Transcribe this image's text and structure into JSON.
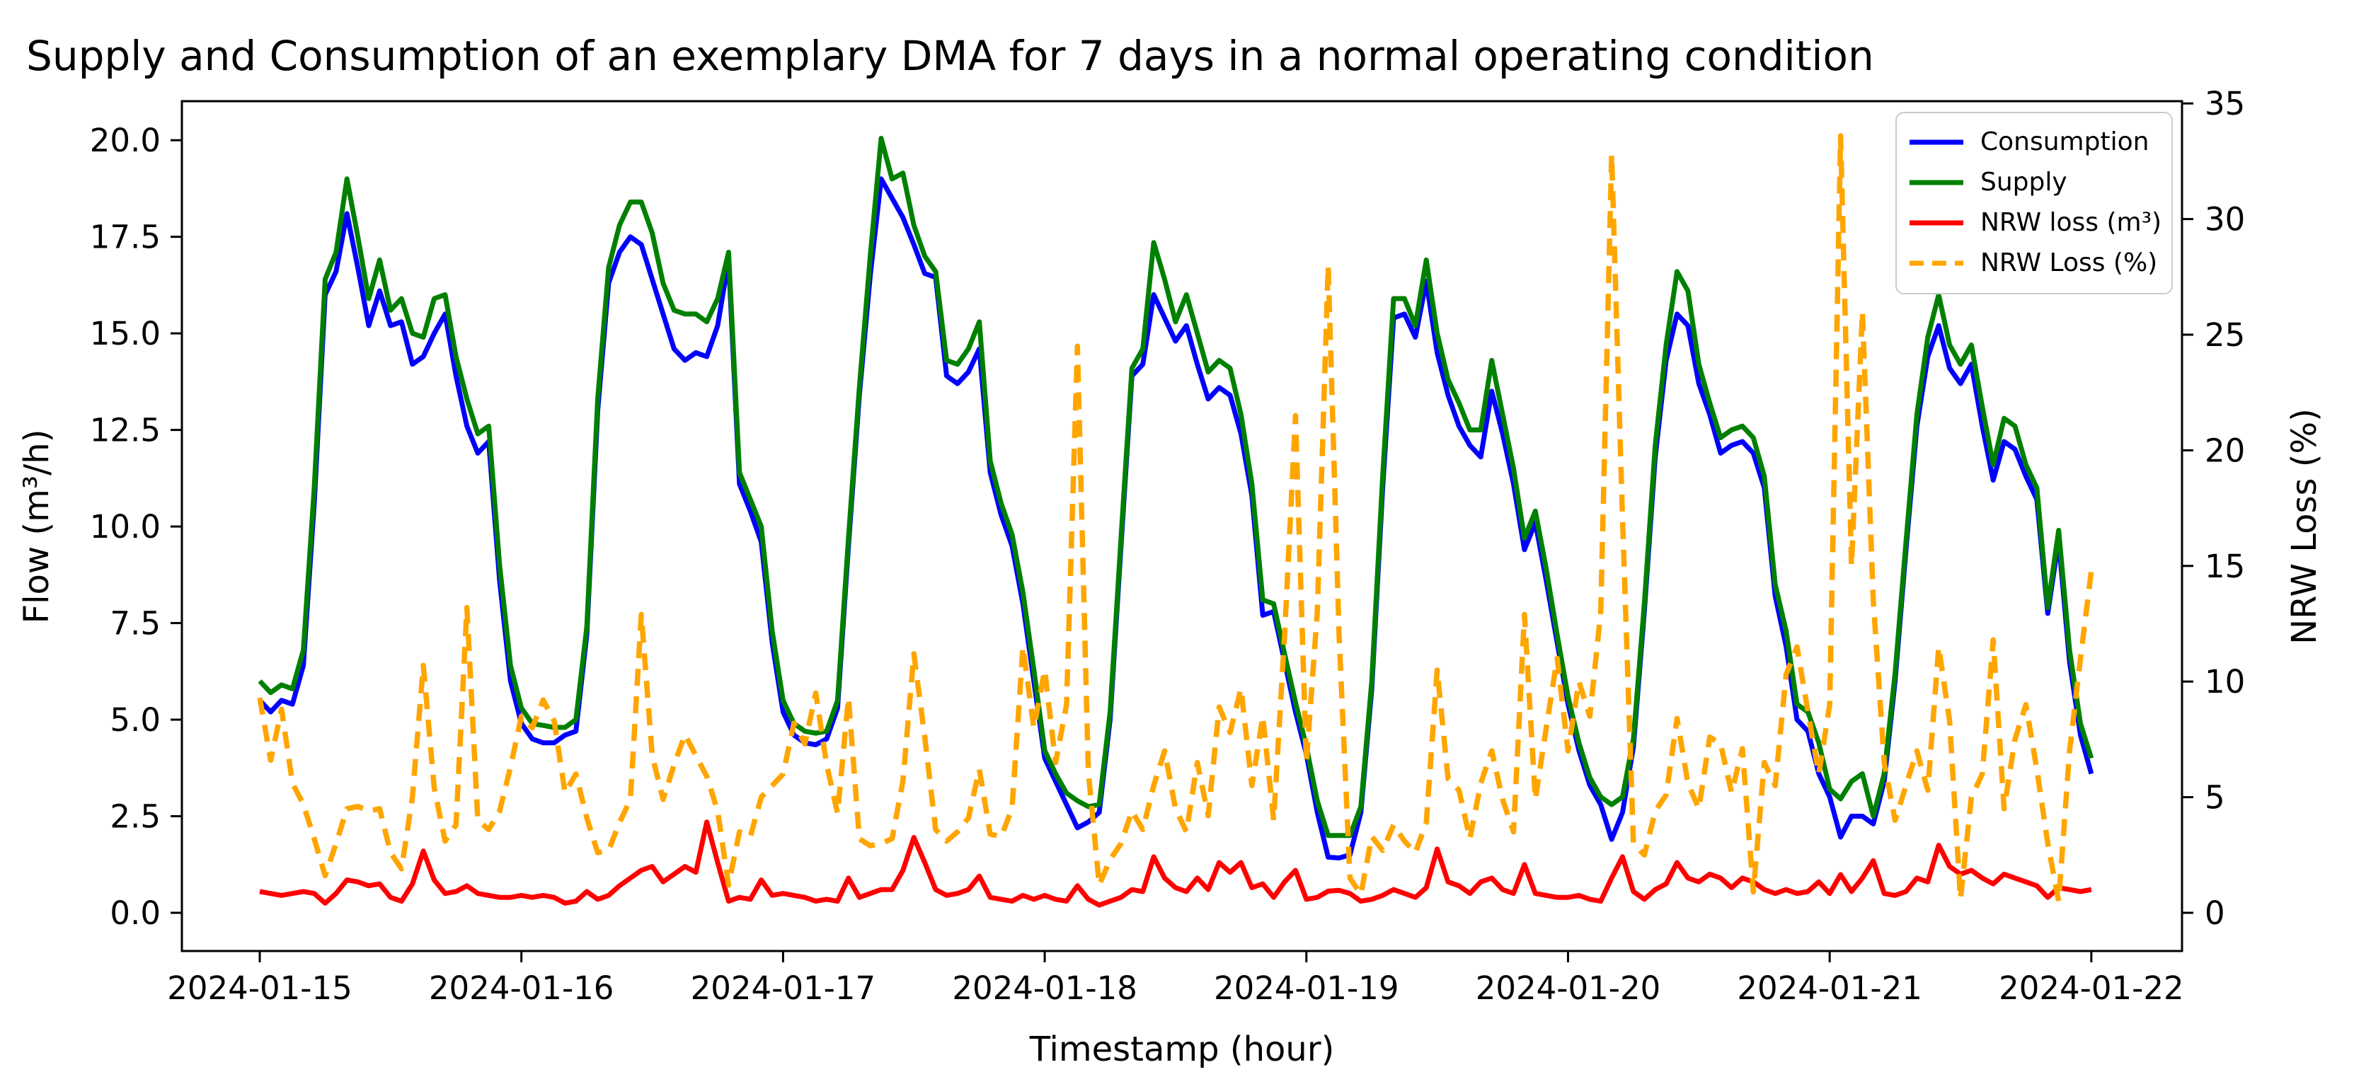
{
  "chart_data": {
    "type": "line",
    "title": "Supply and Consumption of an exemplary DMA for 7 days in a normal operating condition",
    "xlabel": "Timestamp (hour)",
    "ylabel_left": "Flow (m³/h)",
    "ylabel_right": "NRW Loss (%)",
    "x_start": "2024-01-15 00:00",
    "x_end": "2024-01-22 00:00",
    "x_step_hours": 1,
    "n_points": 169,
    "grid": false,
    "legend_position": "upper right",
    "x_tick_labels": [
      "2024-01-15",
      "2024-01-16",
      "2024-01-17",
      "2024-01-18",
      "2024-01-19",
      "2024-01-20",
      "2024-01-21",
      "2024-01-22"
    ],
    "y_ticks_left": {
      "values": [
        0,
        2.5,
        5,
        7.5,
        10,
        12.5,
        15,
        17.5,
        20
      ],
      "labels": [
        "0.0",
        "2.5",
        "5.0",
        "7.5",
        "10.0",
        "12.5",
        "15.0",
        "17.5",
        "20.0"
      ]
    },
    "y_ticks_right": {
      "values": [
        0,
        5,
        10,
        15,
        20,
        25,
        30,
        35
      ],
      "labels": [
        "0",
        "5",
        "10",
        "15",
        "20",
        "25",
        "30",
        "35"
      ]
    },
    "ylim_left": [
      -1.0,
      21.0
    ],
    "ylim_right": [
      -1.65,
      35.1
    ],
    "series": [
      {
        "name": "Consumption",
        "color": "#0000ff",
        "style": "solid",
        "axis": "left",
        "values": [
          5.5,
          5.2,
          5.5,
          5.4,
          6.4,
          10.6,
          16,
          16.6,
          18.1,
          16.7,
          15.2,
          16.1,
          15.2,
          15.3,
          14.2,
          14.4,
          15,
          15.5,
          13.9,
          12.6,
          11.9,
          12.2,
          8.6,
          6,
          4.9,
          4.5,
          4.4,
          4.4,
          4.6,
          4.7,
          7.2,
          13,
          16.3,
          17.1,
          17.5,
          17.3,
          16.4,
          15.5,
          14.6,
          14.3,
          14.5,
          14.4,
          15.2,
          16.9,
          11.1,
          10.4,
          9.6,
          7,
          5.2,
          4.6,
          4.4,
          4.35,
          4.5,
          5.3,
          9.5,
          13.4,
          16.5,
          19,
          18.5,
          18,
          17.3,
          16.55,
          16.45,
          13.9,
          13.7,
          14,
          14.6,
          11.4,
          10.3,
          9.5,
          8,
          6,
          4,
          3.4,
          2.8,
          2.2,
          2.35,
          2.6,
          5,
          9.5,
          13.9,
          14.2,
          16,
          15.4,
          14.8,
          15.2,
          14.2,
          13.3,
          13.6,
          13.4,
          12.4,
          10.8,
          7.7,
          7.8,
          6.5,
          5.2,
          4.1,
          2.6,
          1.44,
          1.42,
          1.5,
          2.6,
          5.8,
          11,
          15.4,
          15.5,
          14.9,
          16.35,
          14.5,
          13.4,
          12.6,
          12.1,
          11.8,
          13.5,
          12.4,
          11.1,
          9.4,
          10.1,
          8.6,
          7,
          5.4,
          4.2,
          3.3,
          2.8,
          1.9,
          2.6,
          4.3,
          7.8,
          11.8,
          14.3,
          15.5,
          15.2,
          13.7,
          12.9,
          11.9,
          12.1,
          12.2,
          11.9,
          11,
          8.2,
          6.9,
          5,
          4.7,
          3.6,
          3,
          1.96,
          2.5,
          2.5,
          2.3,
          3.4,
          6,
          9.4,
          12.6,
          14.4,
          15.2,
          14.1,
          13.7,
          14.2,
          12.6,
          11.2,
          12.2,
          12,
          11.3,
          10.7,
          7.75,
          9.65,
          6.5,
          4.6,
          3.6
        ]
      },
      {
        "name": "Supply",
        "color": "#008000",
        "style": "solid",
        "axis": "left",
        "values": [
          6,
          5.7,
          5.9,
          5.8,
          6.8,
          11,
          16.4,
          17.1,
          19,
          17.5,
          15.9,
          16.9,
          15.6,
          15.9,
          15,
          14.9,
          15.9,
          16,
          14.4,
          13.3,
          12.4,
          12.6,
          9,
          6.4,
          5.3,
          4.9,
          4.85,
          4.8,
          4.8,
          5,
          7.4,
          13.3,
          16.7,
          17.8,
          18.4,
          18.4,
          17.6,
          16.3,
          15.6,
          15.5,
          15.5,
          15.3,
          15.9,
          17.1,
          11.4,
          10.7,
          10,
          7.3,
          5.5,
          4.9,
          4.7,
          4.65,
          4.7,
          5.5,
          9.7,
          13.6,
          17,
          20.05,
          19,
          19.15,
          17.8,
          17,
          16.6,
          14.3,
          14.2,
          14.6,
          15.3,
          11.7,
          10.6,
          9.8,
          8.3,
          6.3,
          4.2,
          3.6,
          3.1,
          2.9,
          2.75,
          2.8,
          5.2,
          9.7,
          14.1,
          14.6,
          17.35,
          16.4,
          15.3,
          16,
          15,
          14,
          14.3,
          14.1,
          12.9,
          11.1,
          8.1,
          8,
          6.7,
          5.45,
          4.3,
          2.9,
          2,
          2,
          2,
          2.75,
          6,
          11.3,
          15.9,
          15.9,
          15.2,
          16.9,
          15,
          13.8,
          13.2,
          12.5,
          12.5,
          14.3,
          12.9,
          11.5,
          9.7,
          10.4,
          8.9,
          7.2,
          5.6,
          4.4,
          3.5,
          3,
          2.8,
          3,
          4.5,
          8,
          12.1,
          14.7,
          16.6,
          16.1,
          14.2,
          13.2,
          12.3,
          12.5,
          12.6,
          12.3,
          11.3,
          8.5,
          7.3,
          5.4,
          5.2,
          4.4,
          3.2,
          2.95,
          3.4,
          3.6,
          2.5,
          3.6,
          6.2,
          9.6,
          12.9,
          14.9,
          16,
          14.7,
          14.2,
          14.7,
          13.1,
          11.6,
          12.8,
          12.6,
          11.6,
          11,
          7.9,
          9.9,
          6.8,
          4.9,
          4
        ]
      },
      {
        "name": "NRW loss (m³)",
        "color": "#ff0000",
        "style": "solid",
        "axis": "left",
        "values": [
          0.55,
          0.5,
          0.45,
          0.5,
          0.55,
          0.5,
          0.25,
          0.5,
          0.85,
          0.8,
          0.7,
          0.75,
          0.4,
          0.3,
          0.75,
          1.6,
          0.85,
          0.5,
          0.55,
          0.7,
          0.5,
          0.45,
          0.4,
          0.4,
          0.45,
          0.4,
          0.45,
          0.4,
          0.25,
          0.3,
          0.55,
          0.35,
          0.45,
          0.7,
          0.9,
          1.1,
          1.2,
          0.8,
          1,
          1.2,
          1.05,
          2.35,
          1.3,
          0.3,
          0.4,
          0.35,
          0.85,
          0.45,
          0.5,
          0.45,
          0.4,
          0.3,
          0.35,
          0.3,
          0.9,
          0.4,
          0.5,
          0.6,
          0.6,
          1.1,
          1.95,
          1.3,
          0.6,
          0.45,
          0.5,
          0.6,
          0.95,
          0.4,
          0.35,
          0.3,
          0.45,
          0.35,
          0.45,
          0.35,
          0.3,
          0.7,
          0.35,
          0.2,
          0.3,
          0.4,
          0.6,
          0.55,
          1.45,
          0.9,
          0.65,
          0.55,
          0.9,
          0.6,
          1.3,
          1.05,
          1.3,
          0.65,
          0.75,
          0.4,
          0.8,
          1.1,
          0.35,
          0.4,
          0.56,
          0.58,
          0.5,
          0.3,
          0.35,
          0.45,
          0.6,
          0.5,
          0.4,
          0.65,
          1.65,
          0.8,
          0.7,
          0.5,
          0.8,
          0.9,
          0.6,
          0.5,
          1.25,
          0.5,
          0.45,
          0.4,
          0.4,
          0.45,
          0.35,
          0.3,
          0.9,
          1.45,
          0.55,
          0.35,
          0.6,
          0.75,
          1.3,
          0.9,
          0.8,
          1,
          0.9,
          0.65,
          0.9,
          0.8,
          0.6,
          0.5,
          0.6,
          0.5,
          0.55,
          0.8,
          0.5,
          0.99,
          0.55,
          0.9,
          1.35,
          0.5,
          0.45,
          0.55,
          0.9,
          0.8,
          1.75,
          1.2,
          1,
          1.1,
          0.9,
          0.75,
          1,
          0.9,
          0.8,
          0.7,
          0.4,
          0.65,
          0.6,
          0.55,
          0.6
        ]
      },
      {
        "name": "NRW Loss (%)",
        "color": "#ffa500",
        "style": "dashed",
        "axis": "right",
        "values": [
          9.3,
          6.6,
          8.8,
          5.6,
          4.7,
          3.2,
          1.6,
          3,
          4.5,
          4.6,
          4.4,
          4.5,
          2.6,
          1.9,
          5,
          10.7,
          5.4,
          3.1,
          3.8,
          13.2,
          4,
          3.6,
          4.4,
          6.3,
          8.5,
          8,
          9.2,
          8.3,
          5.2,
          6,
          4.1,
          2.6,
          2.7,
          3.9,
          4.9,
          12.9,
          6.8,
          4.9,
          6.4,
          7.7,
          6.8,
          5.9,
          4.4,
          1.2,
          3.5,
          3.3,
          5,
          5.5,
          6,
          8.2,
          7.3,
          9.5,
          6.4,
          4.3,
          9.3,
          3.2,
          2.9,
          3,
          3.2,
          5.7,
          11.2,
          7.6,
          3.6,
          3.1,
          3.5,
          4.1,
          6.2,
          3.4,
          3.3,
          4.5,
          11.5,
          8,
          10.5,
          6.5,
          9,
          24.5,
          6.1,
          1.2,
          2.3,
          3,
          4.4,
          3.6,
          5.5,
          7,
          4.5,
          3.5,
          6.5,
          4.2,
          8.9,
          7.8,
          9.7,
          5.5,
          8.5,
          4,
          12,
          21.5,
          6.5,
          13,
          28,
          12,
          1.5,
          0.8,
          3.3,
          2.7,
          3.8,
          3.1,
          2.6,
          3.9,
          10.5,
          5.8,
          5.3,
          3.2,
          5.6,
          7,
          4.9,
          3.5,
          12.9,
          4.9,
          8,
          11,
          7,
          10,
          8.5,
          13,
          32.8,
          17,
          3,
          2.5,
          4.4,
          5.1,
          8.4,
          5.6,
          4.5,
          7.6,
          7.3,
          5.2,
          7.1,
          0.9,
          6.5,
          5.5,
          10.3,
          11.5,
          8.7,
          6,
          9,
          33.6,
          15,
          26,
          13.5,
          6.5,
          4,
          5.5,
          7,
          5.3,
          11.5,
          8.3,
          0.6,
          5,
          6,
          11.8,
          4.5,
          7.5,
          9,
          6.2,
          3,
          0.5,
          7,
          11,
          14.8
        ]
      }
    ]
  }
}
